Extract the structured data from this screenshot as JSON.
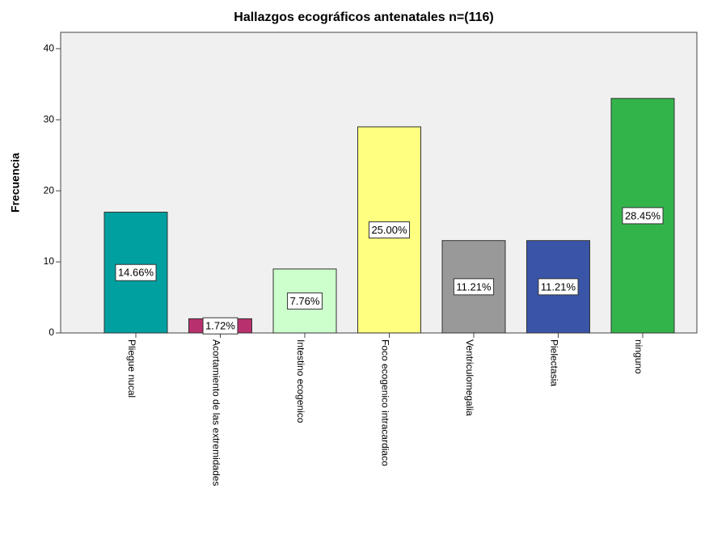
{
  "chart_data": {
    "type": "bar",
    "title": "Hallazgos ecográficos antenatales n=(116)",
    "y_label": "Frecuencia",
    "categories": [
      "Pliegue nucal",
      "Acortamiento de las extremidades",
      "Intestino ecogenico",
      "Foco ecogenico intracardiaco",
      "Ventriculomegalia",
      "Pielectasia",
      "ninguno"
    ],
    "values": [
      17,
      2,
      9,
      29,
      13,
      13,
      33
    ],
    "value_labels": [
      "14.66%",
      "1.72%",
      "7.76%",
      "25.00%",
      "11.21%",
      "11.21%",
      "28.45%"
    ],
    "colors": [
      "#00a0a0",
      "#b8306e",
      "#ccffcc",
      "#ffff80",
      "#999999",
      "#3a55a8",
      "#33b44a"
    ],
    "ylim": [
      0,
      42.3
    ],
    "yticks": [
      0,
      10,
      20,
      30,
      40
    ],
    "grid": false
  }
}
